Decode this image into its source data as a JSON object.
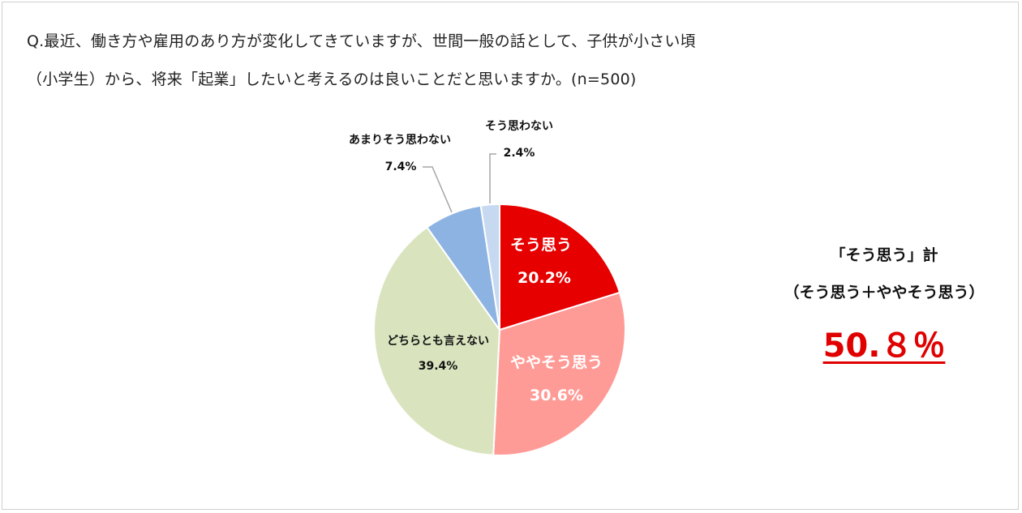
{
  "title_lines": [
    "Q.最近、働き方や雇用のあり方が変化してきていますが、世間一般の話として、子供が小さい頃",
    "（小学生）から、将来「起業」したいと考えるのは良いことだと思いますか。(n=500)"
  ],
  "chart_data": {
    "type": "pie",
    "title": "Q.最近、働き方や雇用のあり方が変化してきていますが、世間一般の話として、子供が小さい頃（小学生）から、将来「起業」したいと考えるのは良いことだと思いますか。(n=500)",
    "start": "top, clockwise",
    "slices": [
      {
        "label": "そう思う",
        "value": 20.2,
        "value_label": "20.2%",
        "color": "#e60000"
      },
      {
        "label": "ややそう思う",
        "value": 30.6,
        "value_label": "30.6%",
        "color": "#ff9b97"
      },
      {
        "label": "どちらとも言えない",
        "value": 39.4,
        "value_label": "39.4%",
        "color": "#d9e4bf"
      },
      {
        "label": "あまりそう思わない",
        "value": 7.4,
        "value_label": "7.4%",
        "color": "#8db3e2"
      },
      {
        "label": "そう思わない",
        "value": 2.4,
        "value_label": "2.4%",
        "color": "#c6d9f1"
      }
    ]
  },
  "summary": {
    "line1": "「そう思う」計",
    "line2": "（そう思う＋ややそう思う）",
    "value": "50.８％",
    "color": "#e00000"
  }
}
